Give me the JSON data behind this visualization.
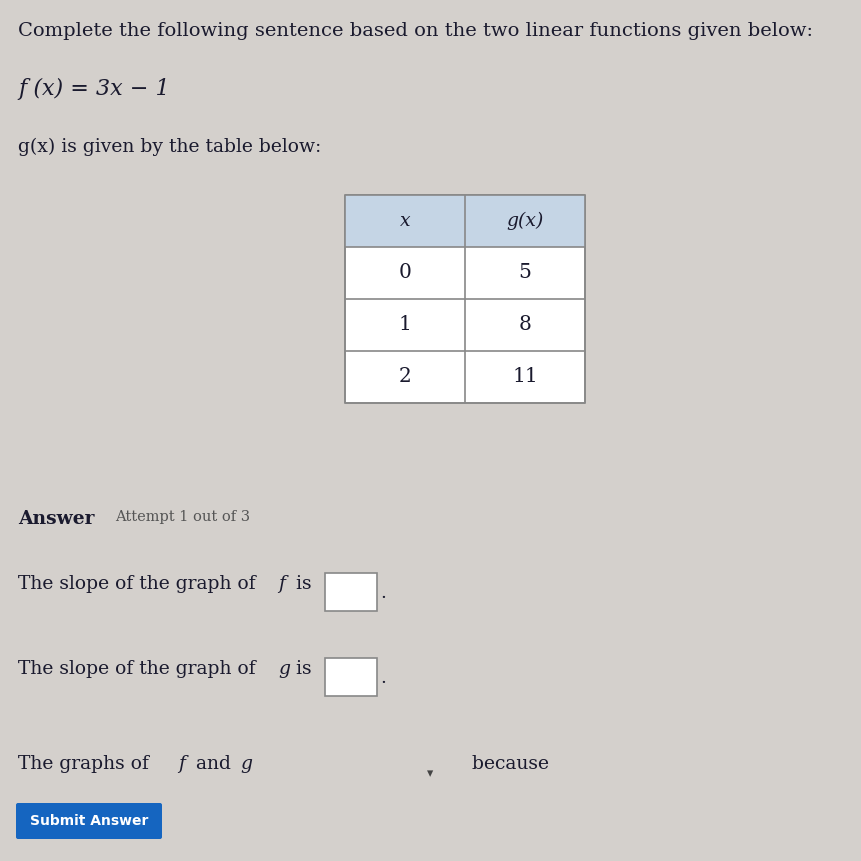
{
  "bg_color": "#d4d0cc",
  "title_text": "Complete the following sentence based on the two linear functions given below:",
  "title_fontsize": 14,
  "f_equation": "f (x) = 3x − 1",
  "g_intro": "g(x) is given by the table below:",
  "table_x_vals": [
    "0",
    "1",
    "2"
  ],
  "table_gx_vals": [
    "5",
    "8",
    "11"
  ],
  "table_header_x": "x",
  "table_header_gx": "g(x)",
  "table_header_bg": "#c5d5e5",
  "answer_label": "Answer",
  "attempt_label": "Attempt 1 out of 3",
  "submit_btn_text": "Submit Answer",
  "submit_btn_color": "#1565c0",
  "text_color": "#1a1a2e",
  "body_fontsize": 13.5,
  "small_fontsize": 10.5
}
